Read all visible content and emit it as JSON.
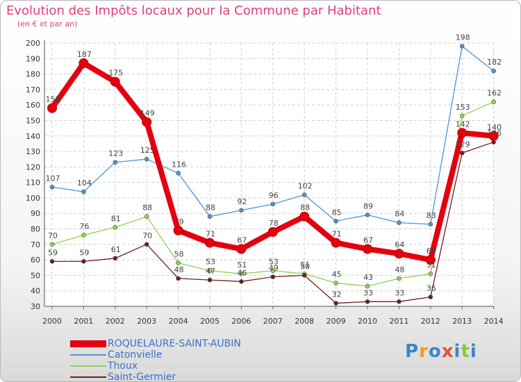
{
  "title": "Evolution des Impôts locaux pour la Commune par Habitant",
  "subtitle": "(en € et par an)",
  "brand": {
    "letters": [
      "P",
      "r",
      "o",
      "x",
      "i",
      "t",
      "i"
    ],
    "colors": [
      "#3a86c8",
      "#f39c12",
      "#3a86c8",
      "#e74c3c",
      "#3a86c8",
      "#8cc63f",
      "#3a86c8"
    ]
  },
  "chart_data": {
    "type": "line",
    "title": "Evolution des Impôts locaux pour la Commune par Habitant",
    "ylabel": "(en € et par an)",
    "xlabel": "",
    "x": [
      "2000",
      "2001",
      "2002",
      "2003",
      "2004",
      "2005",
      "2006",
      "2007",
      "2008",
      "2009",
      "2010",
      "2011",
      "2012",
      "2013",
      "2014"
    ],
    "ylim": [
      30,
      200
    ],
    "yticks": [
      30,
      40,
      50,
      60,
      70,
      80,
      90,
      100,
      110,
      120,
      130,
      140,
      150,
      160,
      170,
      180,
      190,
      200
    ],
    "grid": true,
    "legend": "bottom-left",
    "series": [
      {
        "name": "ROQUELAURE-SAINT-AUBIN",
        "color": "#e3000f",
        "bold": true,
        "values": [
          158,
          187,
          175,
          149,
          79,
          71,
          67,
          78,
          88,
          71,
          67,
          64,
          60,
          142,
          140
        ]
      },
      {
        "name": "Catonvielle",
        "color": "#4d94d0",
        "bold": false,
        "values": [
          107,
          104,
          123,
          125,
          116,
          88,
          92,
          96,
          102,
          85,
          89,
          84,
          83,
          198,
          182
        ]
      },
      {
        "name": "Thoux",
        "color": "#8fd14f",
        "bold": false,
        "values": [
          70,
          76,
          81,
          88,
          58,
          53,
          51,
          53,
          51,
          45,
          43,
          48,
          51,
          153,
          162
        ]
      },
      {
        "name": "Saint-Germier",
        "color": "#6b1e1e",
        "bold": false,
        "values": [
          59,
          59,
          61,
          70,
          48,
          47,
          46,
          49,
          50,
          32,
          33,
          33,
          36,
          129,
          136
        ]
      }
    ]
  }
}
